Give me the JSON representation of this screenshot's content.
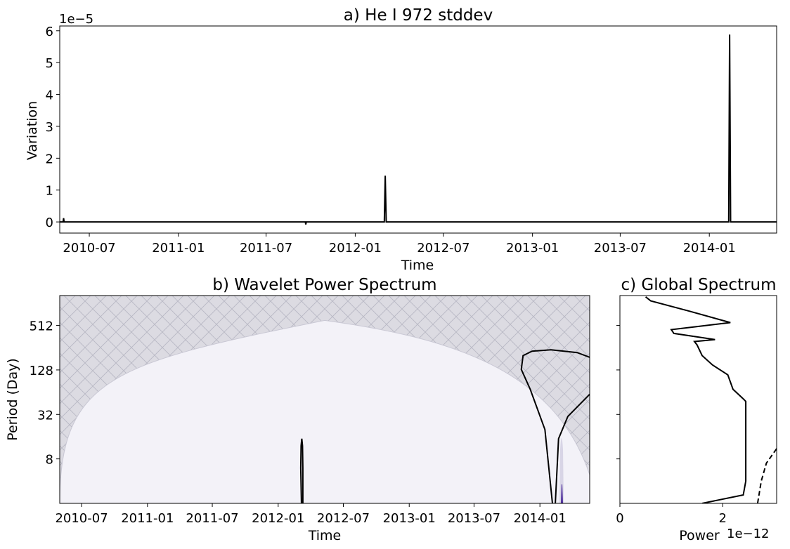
{
  "chart_data": [
    {
      "type": "line",
      "title": "a) He I 972 stddev",
      "xlabel": "Time",
      "ylabel": "Variation",
      "offset_text": "1e−5",
      "x_ticks": [
        "2010-07",
        "2011-01",
        "2011-07",
        "2012-01",
        "2012-07",
        "2013-01",
        "2013-07",
        "2014-01"
      ],
      "y_ticks": [
        "0",
        "1",
        "2",
        "3",
        "4",
        "5",
        "6"
      ],
      "xlim": [
        "2010-05-01",
        "2014-05-20"
      ],
      "ylim": [
        -0.35,
        6.15
      ],
      "grid": false,
      "series": [
        {
          "color": "#000000",
          "points": [
            [
              "2010-05-01",
              0
            ],
            [
              "2010-05-08",
              0
            ],
            [
              "2010-05-09",
              0.12
            ],
            [
              "2010-05-10",
              0
            ],
            [
              "2011-09-20",
              0
            ],
            [
              "2011-09-21",
              -0.08
            ],
            [
              "2011-09-22",
              0
            ],
            [
              "2012-03-01",
              0
            ],
            [
              "2012-03-03",
              1.45
            ],
            [
              "2012-03-05",
              0
            ],
            [
              "2014-02-10",
              0
            ],
            [
              "2014-02-12",
              5.88
            ],
            [
              "2014-02-14",
              0
            ],
            [
              "2014-05-20",
              0
            ]
          ]
        }
      ]
    },
    {
      "type": "heatmap",
      "title": "b) Wavelet Power Spectrum",
      "xlabel": "Time",
      "ylabel": "Period (Day)",
      "x_ticks": [
        "2010-07",
        "2011-01",
        "2011-07",
        "2012-01",
        "2012-07",
        "2013-01",
        "2013-07",
        "2014-01"
      ],
      "y_ticks": [
        "8",
        "32",
        "128",
        "512"
      ],
      "y_scale": "log2",
      "xlim": [
        "2010-05-01",
        "2014-05-20"
      ],
      "ylim": [
        2,
        1300
      ],
      "cone_of_influence_apex": [
        "2012-05-10",
        600
      ],
      "significance_contours": [
        {
          "points": [
            [
              "2012-03-06",
              2
            ],
            [
              "2012-03-04",
              6
            ],
            [
              "2012-03-05",
              12
            ],
            [
              "2012-03-07",
              15
            ],
            [
              "2012-03-09",
              12
            ],
            [
              "2012-03-10",
              6
            ],
            [
              "2012-03-10",
              2
            ]
          ]
        },
        {
          "points": [
            [
              "2014-02-05",
              2
            ],
            [
              "2014-01-15",
              20
            ],
            [
              "2013-12-05",
              70
            ],
            [
              "2013-11-10",
              130
            ],
            [
              "2013-11-15",
              200
            ],
            [
              "2013-12-10",
              230
            ],
            [
              "2014-02-01",
              240
            ],
            [
              "2014-04-15",
              220
            ],
            [
              "2014-05-20",
              190
            ]
          ]
        },
        {
          "points": [
            [
              "2014-02-13",
              2
            ],
            [
              "2014-02-22",
              15
            ],
            [
              "2014-03-20",
              30
            ],
            [
              "2014-05-20",
              60
            ]
          ]
        }
      ]
    },
    {
      "type": "line",
      "title": "c) Global Spectrum",
      "xlabel": "Power",
      "offset_text": "1e−12",
      "x_ticks": [
        "0",
        "2"
      ],
      "y_scale": "log2",
      "xlim": [
        0,
        3.05
      ],
      "ylim": [
        2,
        1300
      ],
      "series": [
        {
          "color": "#000000",
          "style": "solid",
          "points": [
            [
              1.6,
              2
            ],
            [
              2.4,
              2.6
            ],
            [
              2.45,
              4
            ],
            [
              2.45,
              16
            ],
            [
              2.45,
              32
            ],
            [
              2.45,
              48
            ],
            [
              2.4,
              52
            ],
            [
              2.2,
              70
            ],
            [
              2.1,
              110
            ],
            [
              1.8,
              150
            ],
            [
              1.6,
              200
            ],
            [
              1.5,
              280
            ],
            [
              1.45,
              310
            ],
            [
              1.85,
              330
            ],
            [
              1.05,
              400
            ],
            [
              1.0,
              450
            ],
            [
              1.45,
              490
            ],
            [
              2.15,
              560
            ],
            [
              1.35,
              800
            ],
            [
              0.6,
              1100
            ],
            [
              0.5,
              1250
            ]
          ]
        },
        {
          "color": "#000000",
          "style": "dashed",
          "points": [
            [
              2.68,
              2
            ],
            [
              2.75,
              4
            ],
            [
              2.85,
              7
            ],
            [
              3.05,
              11
            ]
          ]
        }
      ]
    }
  ]
}
